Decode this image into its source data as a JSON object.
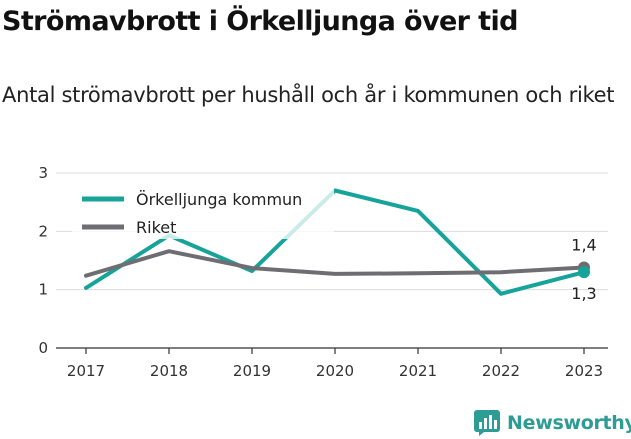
{
  "header": {
    "title": "Strömavbrott i Örkelljunga över tid",
    "subtitle": "Antal strömavbrott per hushåll och år i kommunen och riket"
  },
  "brand": {
    "name": "Newsworthy",
    "icon": "bar-chart-logo-icon",
    "color": "#2c9c94"
  },
  "chart_data": {
    "type": "line",
    "title": "Strömavbrott i Örkelljunga över tid",
    "subtitle": "Antal strömavbrott per hushåll och år i kommunen och riket",
    "xlabel": "",
    "ylabel": "",
    "x": [
      "2017",
      "2018",
      "2019",
      "2020",
      "2021",
      "2022",
      "2023"
    ],
    "ylim": [
      0,
      3
    ],
    "yticks": [
      0,
      1,
      2,
      3
    ],
    "ytick_labels": [
      "0",
      "1",
      "2",
      "3"
    ],
    "grid": true,
    "legend_position": "top-left",
    "series": [
      {
        "name": "Örkelljunga kommun",
        "color": "#16a39a",
        "values": [
          1.03,
          1.93,
          1.32,
          2.7,
          2.35,
          0.93,
          1.3
        ]
      },
      {
        "name": "Riket",
        "color": "#6e6e72",
        "values": [
          1.24,
          1.66,
          1.37,
          1.27,
          1.28,
          1.3,
          1.38
        ]
      }
    ],
    "annotations": [
      {
        "series": "Riket",
        "x": "2023",
        "text": "1,4",
        "position": "above"
      },
      {
        "series": "Örkelljunga kommun",
        "x": "2023",
        "text": "1,3",
        "position": "below"
      }
    ]
  }
}
